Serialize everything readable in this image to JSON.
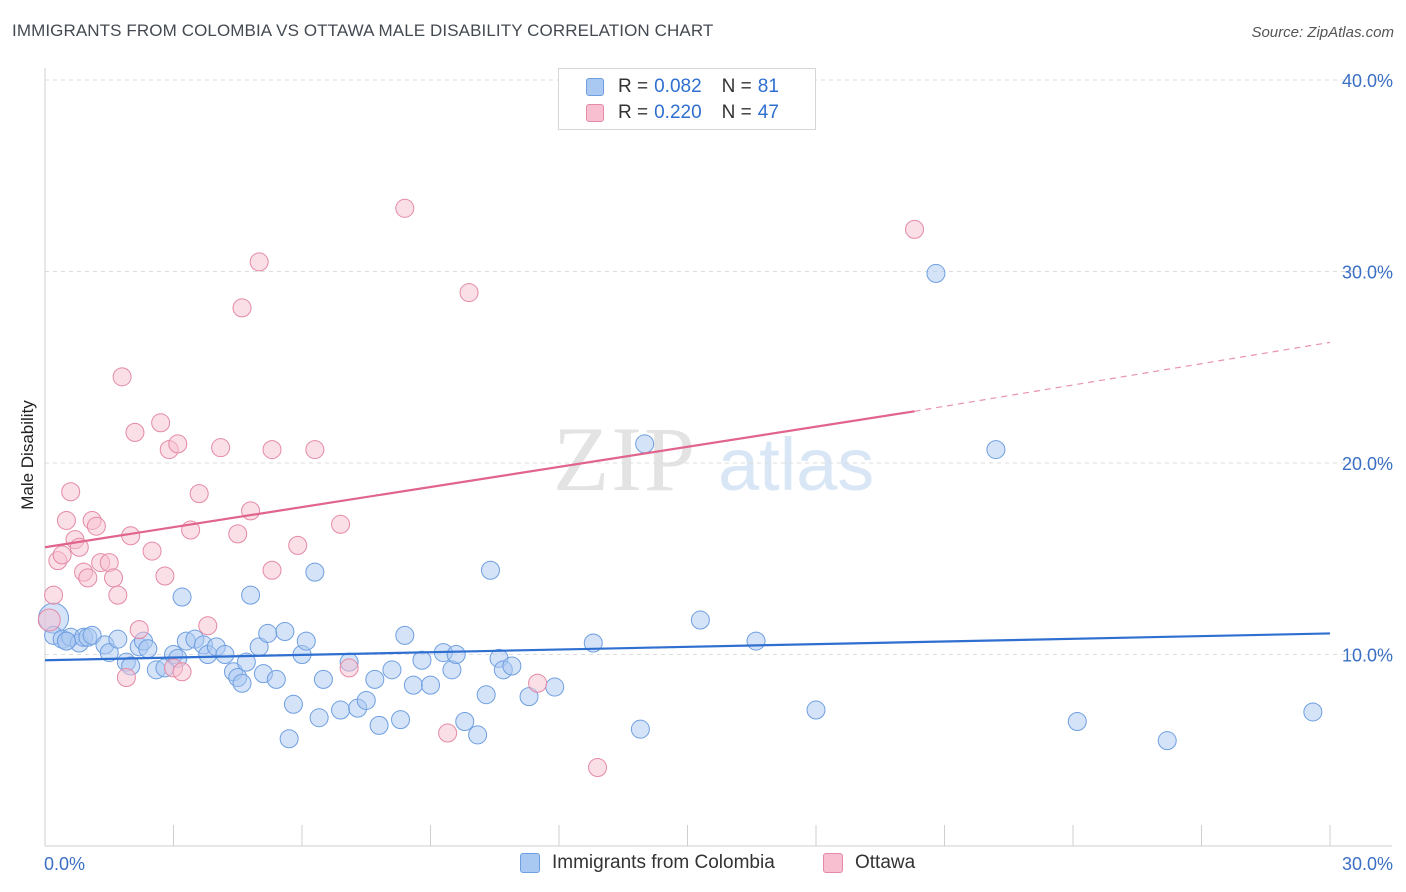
{
  "title": "IMMIGRANTS FROM COLOMBIA VS OTTAWA MALE DISABILITY CORRELATION CHART",
  "source": "Source: ZipAtlas.com",
  "watermark": {
    "zip": "ZIP",
    "atlas": "atlas"
  },
  "legend": {
    "rows": [
      {
        "r_label": "R =",
        "r_value": "0.082",
        "n_label": "N =",
        "n_value": "81",
        "color": "#a9c8f2",
        "border": "#6f9fe0"
      },
      {
        "r_label": "R =",
        "r_value": "0.220",
        "n_label": "N =",
        "n_value": "47",
        "color": "#f7bfd0",
        "border": "#e48aa6"
      }
    ]
  },
  "chart_data": {
    "type": "scatter",
    "title": "IMMIGRANTS FROM COLOMBIA VS OTTAWA MALE DISABILITY CORRELATION CHART",
    "ylabel": "Male Disability",
    "xlim": [
      0,
      30
    ],
    "ylim": [
      0,
      40
    ],
    "x_tick_labels": [
      "0.0%",
      "30.0%"
    ],
    "y_tick_labels": [
      "10.0%",
      "20.0%",
      "30.0%",
      "40.0%"
    ],
    "y_ticks": [
      10,
      20,
      30,
      40
    ],
    "grid": "horizontal dashed",
    "legend_position": "top-center",
    "series": [
      {
        "name": "Immigrants from Colombia",
        "color": "#a9c8f2",
        "stroke": "#6f9fe0",
        "trend_color": "#2f6fd0",
        "trend": {
          "x": [
            0,
            30
          ],
          "y": [
            9.7,
            11.1
          ]
        },
        "points": [
          [
            0.2,
            11.9
          ],
          [
            0.2,
            11.0
          ],
          [
            0.4,
            10.8
          ],
          [
            0.5,
            10.7
          ],
          [
            0.6,
            10.9
          ],
          [
            0.8,
            10.6
          ],
          [
            0.9,
            10.9
          ],
          [
            1.0,
            10.9
          ],
          [
            1.1,
            11.0
          ],
          [
            1.4,
            10.5
          ],
          [
            1.5,
            10.1
          ],
          [
            1.7,
            10.8
          ],
          [
            1.9,
            9.6
          ],
          [
            2.0,
            9.4
          ],
          [
            2.2,
            10.4
          ],
          [
            2.3,
            10.7
          ],
          [
            2.4,
            10.3
          ],
          [
            2.6,
            9.2
          ],
          [
            2.8,
            9.3
          ],
          [
            3.0,
            10.0
          ],
          [
            3.1,
            9.8
          ],
          [
            3.2,
            13.0
          ],
          [
            3.3,
            10.7
          ],
          [
            3.5,
            10.8
          ],
          [
            3.7,
            10.5
          ],
          [
            3.8,
            10.0
          ],
          [
            4.0,
            10.4
          ],
          [
            4.2,
            10.0
          ],
          [
            4.4,
            9.1
          ],
          [
            4.5,
            8.8
          ],
          [
            4.6,
            8.5
          ],
          [
            4.7,
            9.6
          ],
          [
            4.8,
            13.1
          ],
          [
            5.0,
            10.4
          ],
          [
            5.1,
            9.0
          ],
          [
            5.2,
            11.1
          ],
          [
            5.4,
            8.7
          ],
          [
            5.6,
            11.2
          ],
          [
            5.7,
            5.6
          ],
          [
            5.8,
            7.4
          ],
          [
            6.0,
            10.0
          ],
          [
            6.1,
            10.7
          ],
          [
            6.3,
            14.3
          ],
          [
            6.4,
            6.7
          ],
          [
            6.5,
            8.7
          ],
          [
            6.9,
            7.1
          ],
          [
            7.1,
            9.6
          ],
          [
            7.3,
            7.2
          ],
          [
            7.5,
            7.6
          ],
          [
            7.7,
            8.7
          ],
          [
            7.8,
            6.3
          ],
          [
            8.1,
            9.2
          ],
          [
            8.3,
            6.6
          ],
          [
            8.4,
            11.0
          ],
          [
            8.6,
            8.4
          ],
          [
            8.8,
            9.7
          ],
          [
            9.0,
            8.4
          ],
          [
            9.3,
            10.1
          ],
          [
            9.5,
            9.2
          ],
          [
            9.6,
            10.0
          ],
          [
            9.8,
            6.5
          ],
          [
            10.1,
            5.8
          ],
          [
            10.3,
            7.9
          ],
          [
            10.4,
            14.4
          ],
          [
            10.6,
            9.8
          ],
          [
            10.7,
            9.2
          ],
          [
            10.9,
            9.4
          ],
          [
            11.3,
            7.8
          ],
          [
            11.9,
            8.3
          ],
          [
            12.8,
            10.6
          ],
          [
            14.0,
            21.0
          ],
          [
            13.9,
            6.1
          ],
          [
            15.3,
            11.8
          ],
          [
            16.6,
            10.7
          ],
          [
            18.0,
            7.1
          ],
          [
            20.8,
            29.9
          ],
          [
            22.2,
            20.7
          ],
          [
            24.1,
            6.5
          ],
          [
            26.2,
            5.5
          ],
          [
            29.6,
            7.0
          ],
          [
            0.5,
            10.7
          ]
        ]
      },
      {
        "name": "Ottawa",
        "color": "#f7bfd0",
        "stroke": "#e48aa6",
        "trend_color": "#e0648c",
        "trend": {
          "x": [
            0,
            20.3
          ],
          "y": [
            15.6,
            22.7
          ]
        },
        "trend_extension": {
          "x": [
            20.3,
            30
          ],
          "y": [
            22.7,
            26.3
          ]
        },
        "points": [
          [
            0.1,
            11.8
          ],
          [
            0.2,
            13.1
          ],
          [
            0.3,
            14.9
          ],
          [
            0.4,
            15.2
          ],
          [
            0.5,
            17.0
          ],
          [
            0.6,
            18.5
          ],
          [
            0.7,
            16.0
          ],
          [
            0.8,
            15.6
          ],
          [
            0.9,
            14.3
          ],
          [
            1.0,
            14.0
          ],
          [
            1.1,
            17.0
          ],
          [
            1.2,
            16.7
          ],
          [
            1.3,
            14.8
          ],
          [
            1.5,
            14.8
          ],
          [
            1.6,
            14.0
          ],
          [
            1.7,
            13.1
          ],
          [
            1.8,
            24.5
          ],
          [
            1.9,
            8.8
          ],
          [
            2.0,
            16.2
          ],
          [
            2.1,
            21.6
          ],
          [
            2.2,
            11.3
          ],
          [
            2.5,
            15.4
          ],
          [
            2.7,
            22.1
          ],
          [
            2.8,
            14.1
          ],
          [
            2.9,
            20.7
          ],
          [
            3.0,
            9.3
          ],
          [
            3.1,
            21.0
          ],
          [
            3.2,
            9.1
          ],
          [
            3.4,
            16.5
          ],
          [
            3.6,
            18.4
          ],
          [
            3.8,
            11.5
          ],
          [
            4.1,
            20.8
          ],
          [
            4.5,
            16.3
          ],
          [
            4.6,
            28.1
          ],
          [
            4.8,
            17.5
          ],
          [
            5.0,
            30.5
          ],
          [
            5.3,
            20.7
          ],
          [
            5.3,
            14.4
          ],
          [
            5.9,
            15.7
          ],
          [
            6.3,
            20.7
          ],
          [
            6.9,
            16.8
          ],
          [
            7.1,
            9.3
          ],
          [
            8.4,
            33.3
          ],
          [
            9.4,
            5.9
          ],
          [
            9.9,
            28.9
          ],
          [
            11.5,
            8.5
          ],
          [
            12.9,
            4.1
          ],
          [
            20.3,
            32.2
          ]
        ]
      }
    ]
  },
  "bottom_legend": [
    {
      "label": "Immigrants from Colombia",
      "color": "#a9c8f2",
      "border": "#6f9fe0"
    },
    {
      "label": "Ottawa",
      "color": "#f7bfd0",
      "border": "#e48aa6"
    }
  ]
}
